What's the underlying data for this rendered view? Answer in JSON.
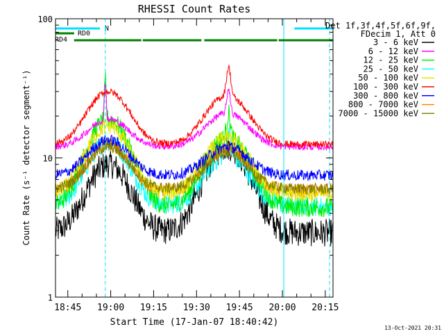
{
  "chart_data": {
    "type": "line",
    "title": "RHESSI Count Rates",
    "xlabel": "Start Time (17-Jan-07 18:40:42)",
    "ylabel": "Count Rate (s⁻¹ detector segment⁻¹)",
    "y_scale": "log",
    "ylim": [
      1,
      100
    ],
    "y_ticks": [
      {
        "value": 1,
        "label": "1"
      },
      {
        "value": 10,
        "label": "10"
      },
      {
        "value": 100,
        "label": "100"
      }
    ],
    "x_range_minutes": [
      0,
      97
    ],
    "x_ticks": [
      {
        "t": 4.3,
        "label": "18:45"
      },
      {
        "t": 19.3,
        "label": "19:00"
      },
      {
        "t": 34.3,
        "label": "19:15"
      },
      {
        "t": 49.3,
        "label": "19:30"
      },
      {
        "t": 64.3,
        "label": "19:45"
      },
      {
        "t": 79.3,
        "label": "20:00"
      },
      {
        "t": 94.3,
        "label": "20:15"
      }
    ],
    "legend_header": [
      "Det 1f,3f,4f,5f,6f,9f,",
      "FDecim 1, Att 0"
    ],
    "legend_position": "right",
    "series": [
      {
        "name": "3 - 6 keV",
        "color": "#000000",
        "base": 2.9,
        "peak1": 9.0,
        "peak2": 12.0,
        "noise": 0.1
      },
      {
        "name": "6 - 12 keV",
        "color": "#ff00ff",
        "base": 12.0,
        "peak1": 19.0,
        "peak2": 21.0,
        "noise": 0.025
      },
      {
        "name": "12 - 25 keV",
        "color": "#00ee00",
        "base": 4.4,
        "peak1": 19.0,
        "peak2": 14.0,
        "noise": 0.07
      },
      {
        "name": "25 - 50 keV",
        "color": "#00ffff",
        "base": 4.5,
        "peak1": 13.0,
        "peak2": 10.5,
        "noise": 0.07
      },
      {
        "name": "50 - 100 keV",
        "color": "#e6e600",
        "base": 5.5,
        "peak1": 17.0,
        "peak2": 14.0,
        "noise": 0.06
      },
      {
        "name": "100 - 300 keV",
        "color": "#ff0000",
        "base": 12.5,
        "peak1": 30.0,
        "peak2": 28.0,
        "noise": 0.025
      },
      {
        "name": "300 - 800 keV",
        "color": "#0000ff",
        "base": 7.5,
        "peak1": 13.5,
        "peak2": 12.0,
        "noise": 0.04
      },
      {
        "name": "800 - 7000 keV",
        "color": "#ff8800",
        "base": 5.8,
        "peak1": 12.5,
        "peak2": 11.5,
        "noise": 0.05
      },
      {
        "name": "7000 - 15000 keV",
        "color": "#808000",
        "base": 6.0,
        "peak1": 12.0,
        "peak2": 11.0,
        "noise": 0.04
      }
    ],
    "flags": [
      {
        "name": "N",
        "color": "#00e0ff",
        "segments": [
          [
            0,
            15.5
          ],
          [
            83.5,
            97
          ]
        ]
      },
      {
        "name": "RD0",
        "color": "#008000",
        "segments": [
          [
            0,
            6.5
          ]
        ]
      },
      {
        "name": "RD4",
        "color": "#008000",
        "segments": [
          [
            6.5,
            30
          ],
          [
            30.5,
            51
          ],
          [
            52,
            77.5
          ],
          [
            78,
            97
          ]
        ]
      }
    ],
    "vertical_markers": [
      17.4,
      79.8,
      95.8
    ],
    "footer": "13-Oct-2021 20:31"
  }
}
